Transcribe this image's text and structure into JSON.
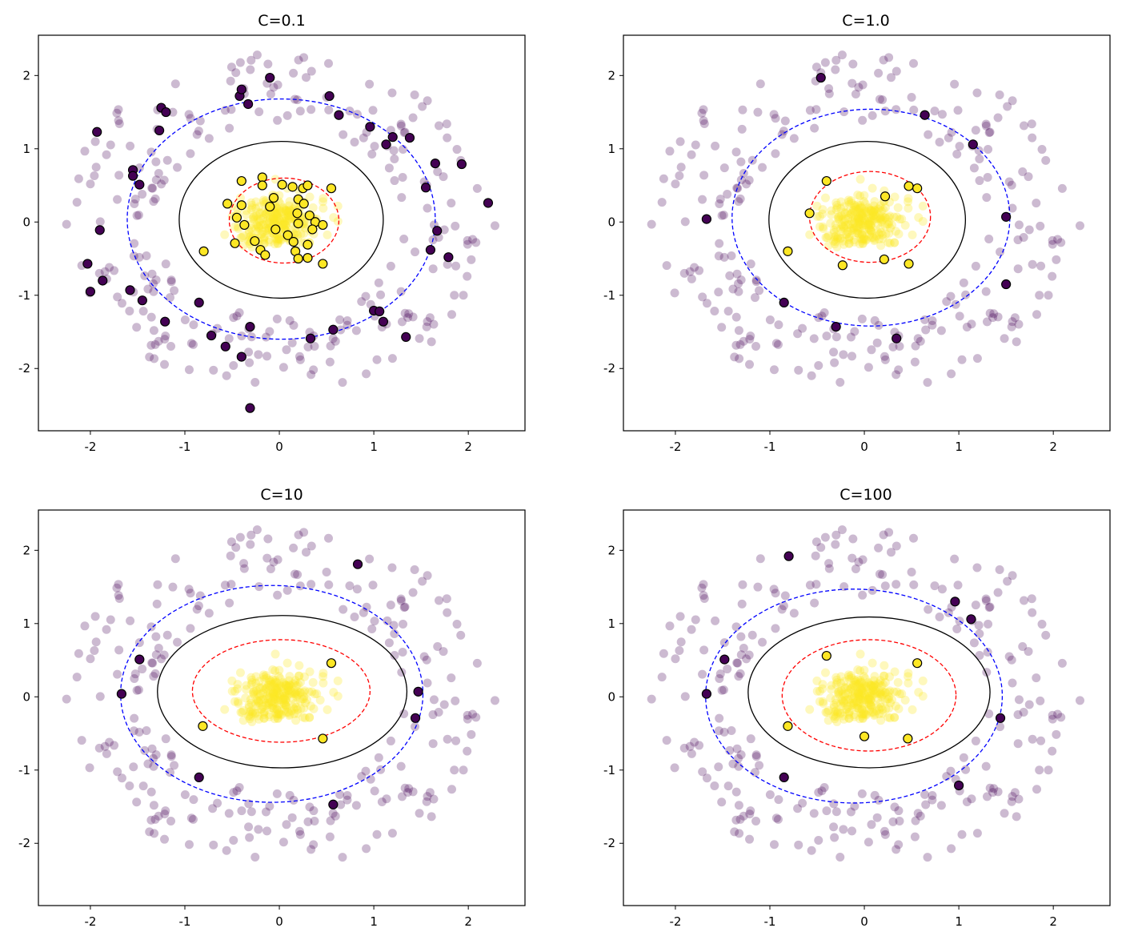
{
  "chart_data": [
    {
      "type": "scatter",
      "title": "C=0.1",
      "xlim": [
        -2.55,
        2.6
      ],
      "ylim": [
        -2.85,
        2.55
      ],
      "xticks": [
        -2,
        -1,
        0,
        1,
        2
      ],
      "xtick_labels": [
        "-2",
        "-1",
        "0",
        "1",
        "2"
      ],
      "yticks": [
        -2,
        -1,
        0,
        1,
        2
      ],
      "ytick_labels": [
        "-2",
        "-1",
        "0",
        "1",
        "2"
      ],
      "boundaries": [
        {
          "level": 0,
          "style": "solid",
          "color": "#000000",
          "cx": 0.02,
          "cy": 0.03,
          "rx": 1.08,
          "ry": 1.07
        },
        {
          "level": 1,
          "style": "dashed",
          "color": "#ff0000",
          "cx": 0.05,
          "cy": 0.02,
          "rx": 0.58,
          "ry": 0.58
        },
        {
          "level": -1,
          "style": "dashed",
          "color": "#0000ff",
          "cx": 0.02,
          "cy": 0.04,
          "rx": 1.63,
          "ry": 1.64
        }
      ],
      "support_vectors": {
        "outer": [
          [
            -1.25,
            1.56
          ],
          [
            -1.2,
            1.5
          ],
          [
            -0.42,
            1.72
          ],
          [
            -0.4,
            1.81
          ],
          [
            -0.1,
            1.97
          ],
          [
            -0.33,
            1.61
          ],
          [
            0.53,
            1.72
          ],
          [
            0.63,
            1.46
          ],
          [
            0.96,
            1.3
          ],
          [
            1.13,
            1.06
          ],
          [
            1.2,
            1.16
          ],
          [
            1.38,
            1.15
          ],
          [
            -1.93,
            1.23
          ],
          [
            -1.55,
            0.71
          ],
          [
            -1.55,
            0.63
          ],
          [
            -1.48,
            0.51
          ],
          [
            1.65,
            0.8
          ],
          [
            1.93,
            0.79
          ],
          [
            1.55,
            0.47
          ],
          [
            2.21,
            0.26
          ],
          [
            -1.9,
            -0.11
          ],
          [
            1.67,
            -0.12
          ],
          [
            1.6,
            -0.38
          ],
          [
            1.79,
            -0.48
          ],
          [
            -2.03,
            -0.57
          ],
          [
            -1.87,
            -0.8
          ],
          [
            -2.0,
            -0.95
          ],
          [
            -1.58,
            -0.93
          ],
          [
            -1.45,
            -1.07
          ],
          [
            -0.85,
            -1.1
          ],
          [
            -1.21,
            -1.36
          ],
          [
            1.0,
            -1.21
          ],
          [
            1.06,
            -1.22
          ],
          [
            1.1,
            -1.36
          ],
          [
            1.34,
            -1.57
          ],
          [
            -0.72,
            -1.55
          ],
          [
            -0.57,
            -1.7
          ],
          [
            -0.4,
            -1.84
          ],
          [
            -0.31,
            -1.43
          ],
          [
            0.33,
            -1.59
          ],
          [
            0.57,
            -1.47
          ],
          [
            -0.31,
            -2.54
          ],
          [
            -1.27,
            1.25
          ]
        ],
        "inner": [
          [
            -0.4,
            0.56
          ],
          [
            -0.18,
            0.61
          ],
          [
            -0.18,
            0.5
          ],
          [
            -0.06,
            0.33
          ],
          [
            0.03,
            0.51
          ],
          [
            0.14,
            0.48
          ],
          [
            0.25,
            0.46
          ],
          [
            0.3,
            0.5
          ],
          [
            0.55,
            0.46
          ],
          [
            -0.1,
            0.21
          ],
          [
            0.2,
            0.31
          ],
          [
            0.26,
            0.25
          ],
          [
            -0.55,
            0.25
          ],
          [
            -0.4,
            0.23
          ],
          [
            0.19,
            0.12
          ],
          [
            0.32,
            0.09
          ],
          [
            -0.45,
            0.06
          ],
          [
            -0.37,
            -0.04
          ],
          [
            0.38,
            0.0
          ],
          [
            0.46,
            -0.04
          ],
          [
            0.2,
            -0.02
          ],
          [
            0.35,
            -0.1
          ],
          [
            -0.04,
            -0.1
          ],
          [
            0.09,
            -0.18
          ],
          [
            -0.47,
            -0.29
          ],
          [
            -0.26,
            -0.26
          ],
          [
            0.15,
            -0.27
          ],
          [
            0.3,
            -0.31
          ],
          [
            -0.2,
            -0.38
          ],
          [
            -0.15,
            -0.45
          ],
          [
            0.17,
            -0.4
          ],
          [
            0.2,
            -0.5
          ],
          [
            0.3,
            -0.49
          ],
          [
            0.46,
            -0.57
          ],
          [
            -0.8,
            -0.4
          ]
        ]
      }
    },
    {
      "type": "scatter",
      "title": "C=1.0",
      "xlim": [
        -2.55,
        2.6
      ],
      "ylim": [
        -2.85,
        2.55
      ],
      "xticks": [
        -2,
        -1,
        0,
        1,
        2
      ],
      "xtick_labels": [
        "-2",
        "-1",
        "0",
        "1",
        "2"
      ],
      "yticks": [
        -2,
        -1,
        0,
        1,
        2
      ],
      "ytick_labels": [
        "-2",
        "-1",
        "0",
        "1",
        "2"
      ],
      "boundaries": [
        {
          "level": 0,
          "style": "solid",
          "color": "#000000",
          "cx": 0.03,
          "cy": 0.03,
          "rx": 1.04,
          "ry": 1.07
        },
        {
          "level": 1,
          "style": "dashed",
          "color": "#ff0000",
          "cx": 0.06,
          "cy": 0.07,
          "rx": 0.64,
          "ry": 0.62
        },
        {
          "level": -1,
          "style": "dashed",
          "color": "#0000ff",
          "cx": 0.07,
          "cy": 0.06,
          "rx": 1.47,
          "ry": 1.48
        }
      ],
      "support_vectors": {
        "outer": [
          [
            -0.46,
            1.97
          ],
          [
            0.64,
            1.46
          ],
          [
            1.15,
            1.06
          ],
          [
            -1.67,
            0.04
          ],
          [
            1.5,
            0.07
          ],
          [
            1.5,
            -0.85
          ],
          [
            -0.85,
            -1.1
          ],
          [
            -0.3,
            -1.43
          ],
          [
            0.34,
            -1.59
          ]
        ],
        "inner": [
          [
            -0.4,
            0.56
          ],
          [
            0.47,
            0.49
          ],
          [
            0.56,
            0.46
          ],
          [
            0.22,
            0.35
          ],
          [
            -0.58,
            0.12
          ],
          [
            -0.81,
            -0.4
          ],
          [
            0.21,
            -0.51
          ],
          [
            0.47,
            -0.57
          ],
          [
            -0.23,
            -0.59
          ]
        ]
      }
    },
    {
      "type": "scatter",
      "title": "C=10",
      "xlim": [
        -2.55,
        2.6
      ],
      "ylim": [
        -2.85,
        2.55
      ],
      "xticks": [
        -2,
        -1,
        0,
        1,
        2
      ],
      "xtick_labels": [
        "-2",
        "-1",
        "0",
        "1",
        "2"
      ],
      "yticks": [
        -2,
        -1,
        0,
        1,
        2
      ],
      "ytick_labels": [
        "-2",
        "-1",
        "0",
        "1",
        "2"
      ],
      "boundaries": [
        {
          "level": 0,
          "style": "solid",
          "color": "#000000",
          "cx": 0.03,
          "cy": 0.07,
          "rx": 1.32,
          "ry": 1.04
        },
        {
          "level": 1,
          "style": "dashed",
          "color": "#ff0000",
          "cx": 0.02,
          "cy": 0.08,
          "rx": 0.94,
          "ry": 0.7
        },
        {
          "level": -1,
          "style": "dashed",
          "color": "#0000ff",
          "cx": -0.08,
          "cy": 0.04,
          "rx": 1.6,
          "ry": 1.48
        }
      ],
      "support_vectors": {
        "outer": [
          [
            0.83,
            1.81
          ],
          [
            -1.48,
            0.51
          ],
          [
            -1.67,
            0.04
          ],
          [
            1.47,
            0.07
          ],
          [
            1.44,
            -0.29
          ],
          [
            -0.85,
            -1.1
          ],
          [
            0.57,
            -1.47
          ]
        ],
        "inner": [
          [
            0.55,
            0.46
          ],
          [
            -0.81,
            -0.4
          ],
          [
            0.46,
            -0.57
          ]
        ]
      }
    },
    {
      "type": "scatter",
      "title": "C=100",
      "xlim": [
        -2.55,
        2.6
      ],
      "ylim": [
        -2.85,
        2.55
      ],
      "xticks": [
        -2,
        -1,
        0,
        1,
        2
      ],
      "xtick_labels": [
        "-2",
        "-1",
        "0",
        "1",
        "2"
      ],
      "yticks": [
        -2,
        -1,
        0,
        1,
        2
      ],
      "ytick_labels": [
        "-2",
        "-1",
        "0",
        "1",
        "2"
      ],
      "boundaries": [
        {
          "level": 0,
          "style": "solid",
          "color": "#000000",
          "cx": 0.05,
          "cy": 0.06,
          "rx": 1.28,
          "ry": 1.03
        },
        {
          "level": 1,
          "style": "dashed",
          "color": "#ff0000",
          "cx": 0.05,
          "cy": 0.02,
          "rx": 0.92,
          "ry": 0.76
        },
        {
          "level": -1,
          "style": "dashed",
          "color": "#0000ff",
          "cx": -0.11,
          "cy": 0.01,
          "rx": 1.57,
          "ry": 1.46
        }
      ],
      "support_vectors": {
        "outer": [
          [
            -0.8,
            1.92
          ],
          [
            0.96,
            1.3
          ],
          [
            1.13,
            1.06
          ],
          [
            -1.48,
            0.51
          ],
          [
            -1.67,
            0.04
          ],
          [
            1.44,
            -0.29
          ],
          [
            1.0,
            -1.21
          ],
          [
            -0.85,
            -1.1
          ]
        ],
        "inner": [
          [
            -0.4,
            0.56
          ],
          [
            0.56,
            0.46
          ],
          [
            -0.81,
            -0.4
          ],
          [
            0.0,
            -0.54
          ],
          [
            0.46,
            -0.57
          ]
        ]
      }
    }
  ],
  "colors": {
    "outer_class": "#440154",
    "inner_class": "#fde725",
    "support_vector_edge": "#000000",
    "decision_boundary": "#000000",
    "positive_margin": "#ff0000",
    "negative_margin": "#0000ff"
  }
}
